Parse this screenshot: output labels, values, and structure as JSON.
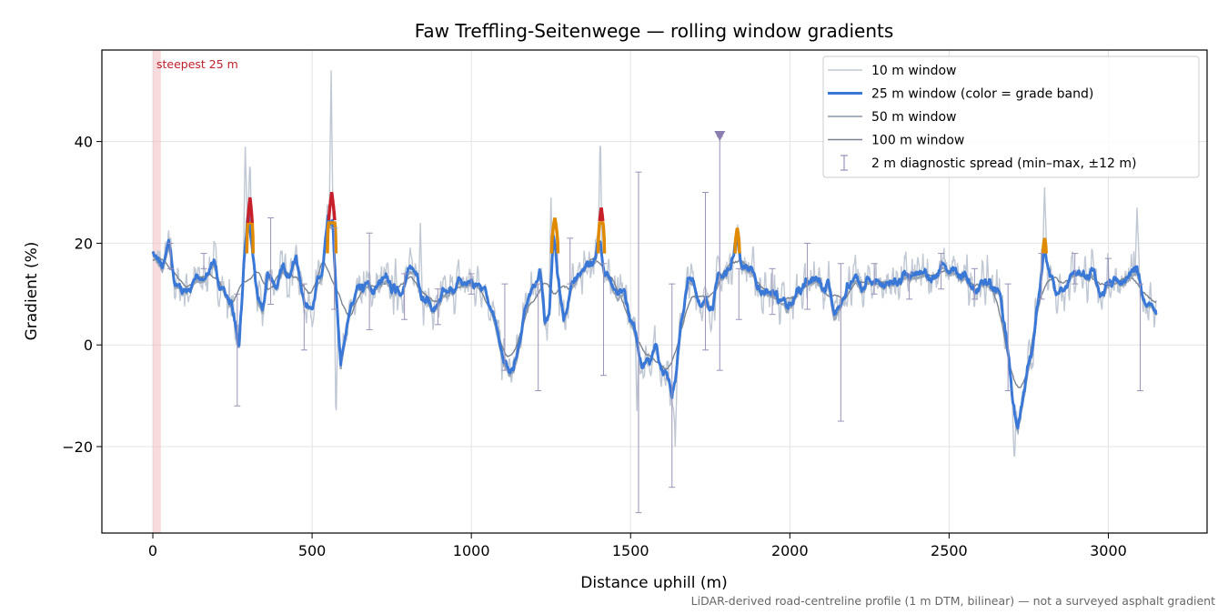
{
  "chart_data": {
    "type": "line",
    "title": "Faw Treffling-Seitenwege — rolling window gradients",
    "xlabel": "Distance uphill (m)",
    "ylabel": "Gradient (%)",
    "footnote": "LiDAR-derived road-centreline profile (1 m DTM, bilinear) — not a surveyed asphalt gradient",
    "xlim": [
      -160,
      3310
    ],
    "ylim": [
      -37,
      58
    ],
    "x_ticks": [
      0,
      500,
      1000,
      1500,
      2000,
      2500,
      3000
    ],
    "x_tick_labels": [
      "0",
      "500",
      "1000",
      "1500",
      "2000",
      "2500",
      "3000"
    ],
    "y_ticks": [
      -20,
      0,
      20,
      40
    ],
    "y_tick_labels": [
      "−20",
      "0",
      "20",
      "40"
    ],
    "grid": true,
    "legend_position": "top-right",
    "legend": [
      {
        "label": "10 m window",
        "style": "thin-light"
      },
      {
        "label": "25 m window (color = grade band)",
        "style": "thick-blue"
      },
      {
        "label": "50 m window",
        "style": "mid-grey"
      },
      {
        "label": "100 m window",
        "style": "dark-grey"
      },
      {
        "label": "2 m diagnostic spread (min–max, ±12 m)",
        "style": "errorbar"
      }
    ],
    "annotation": {
      "text": "steepest 25 m",
      "x_range": [
        0,
        25
      ]
    },
    "marker": {
      "x": 1780,
      "y": 41
    },
    "colors": {
      "w10": "#c0c8d3",
      "w25": "#3a78d8",
      "w50": "#9aa7b6",
      "w100": "#7a8490",
      "errorbar": "#9a92b8",
      "band_orange": "#e08a00",
      "band_red": "#c8202a",
      "highlight": "#f2b8bc",
      "marker": "#8a7fae"
    },
    "keypoints": [
      [
        0,
        19
      ],
      [
        15,
        16
      ],
      [
        30,
        15
      ],
      [
        50,
        19
      ],
      [
        70,
        12
      ],
      [
        100,
        11
      ],
      [
        130,
        12
      ],
      [
        160,
        13
      ],
      [
        180,
        16
      ],
      [
        200,
        14
      ],
      [
        230,
        10
      ],
      [
        255,
        6
      ],
      [
        270,
        0
      ],
      [
        285,
        14
      ],
      [
        300,
        25
      ],
      [
        315,
        17
      ],
      [
        330,
        8
      ],
      [
        345,
        6
      ],
      [
        360,
        14
      ],
      [
        390,
        12
      ],
      [
        420,
        15
      ],
      [
        450,
        17
      ],
      [
        470,
        10
      ],
      [
        490,
        8
      ],
      [
        510,
        10
      ],
      [
        530,
        13
      ],
      [
        550,
        23
      ],
      [
        565,
        23
      ],
      [
        575,
        10
      ],
      [
        590,
        -5
      ],
      [
        610,
        4
      ],
      [
        640,
        12
      ],
      [
        680,
        11
      ],
      [
        720,
        12
      ],
      [
        760,
        11
      ],
      [
        800,
        13
      ],
      [
        830,
        15
      ],
      [
        850,
        10
      ],
      [
        880,
        7
      ],
      [
        920,
        9
      ],
      [
        960,
        12
      ],
      [
        1000,
        12
      ],
      [
        1040,
        13
      ],
      [
        1060,
        8
      ],
      [
        1080,
        2
      ],
      [
        1100,
        -3
      ],
      [
        1120,
        -6
      ],
      [
        1140,
        -4
      ],
      [
        1160,
        3
      ],
      [
        1180,
        10
      ],
      [
        1200,
        13
      ],
      [
        1215,
        14
      ],
      [
        1230,
        4
      ],
      [
        1245,
        8
      ],
      [
        1258,
        22
      ],
      [
        1270,
        14
      ],
      [
        1290,
        5
      ],
      [
        1310,
        10
      ],
      [
        1330,
        13
      ],
      [
        1350,
        15
      ],
      [
        1370,
        17
      ],
      [
        1390,
        16
      ],
      [
        1405,
        22
      ],
      [
        1420,
        15
      ],
      [
        1440,
        12
      ],
      [
        1460,
        8
      ],
      [
        1480,
        10
      ],
      [
        1500,
        5
      ],
      [
        1520,
        0
      ],
      [
        1540,
        -3
      ],
      [
        1560,
        -2
      ],
      [
        1580,
        0
      ],
      [
        1600,
        -4
      ],
      [
        1615,
        -6
      ],
      [
        1630,
        -8
      ],
      [
        1645,
        -5
      ],
      [
        1660,
        5
      ],
      [
        1680,
        12
      ],
      [
        1700,
        12
      ],
      [
        1720,
        9
      ],
      [
        1740,
        7
      ],
      [
        1760,
        10
      ],
      [
        1780,
        13
      ],
      [
        1800,
        14
      ],
      [
        1820,
        18
      ],
      [
        1835,
        21
      ],
      [
        1850,
        16
      ],
      [
        1870,
        15
      ],
      [
        1900,
        12
      ],
      [
        1930,
        10
      ],
      [
        1960,
        10
      ],
      [
        1990,
        6
      ],
      [
        2020,
        10
      ],
      [
        2050,
        13
      ],
      [
        2080,
        13
      ],
      [
        2100,
        11
      ],
      [
        2120,
        12
      ],
      [
        2140,
        4
      ],
      [
        2160,
        8
      ],
      [
        2180,
        13
      ],
      [
        2200,
        12
      ],
      [
        2230,
        11
      ],
      [
        2260,
        13
      ],
      [
        2300,
        12
      ],
      [
        2350,
        13
      ],
      [
        2400,
        13
      ],
      [
        2450,
        14
      ],
      [
        2480,
        15
      ],
      [
        2510,
        14
      ],
      [
        2540,
        13
      ],
      [
        2570,
        12
      ],
      [
        2600,
        12
      ],
      [
        2630,
        12
      ],
      [
        2660,
        10
      ],
      [
        2680,
        2
      ],
      [
        2700,
        -10
      ],
      [
        2715,
        -17
      ],
      [
        2730,
        -12
      ],
      [
        2750,
        -5
      ],
      [
        2770,
        3
      ],
      [
        2785,
        10
      ],
      [
        2800,
        19
      ],
      [
        2815,
        15
      ],
      [
        2840,
        11
      ],
      [
        2870,
        13
      ],
      [
        2900,
        15
      ],
      [
        2930,
        14
      ],
      [
        2960,
        12
      ],
      [
        2990,
        11
      ],
      [
        3020,
        14
      ],
      [
        3050,
        12
      ],
      [
        3070,
        13
      ],
      [
        3090,
        14
      ],
      [
        3110,
        10
      ],
      [
        3130,
        8
      ],
      [
        3150,
        7
      ]
    ],
    "steep_segments": [
      {
        "range": [
          295,
          315
        ],
        "band": "red",
        "peak": 29
      },
      {
        "range": [
          548,
          575
        ],
        "band": "red",
        "peak": 30
      },
      {
        "range": [
          1252,
          1272
        ],
        "band": "orange",
        "peak": 25
      },
      {
        "range": [
          1398,
          1418
        ],
        "band": "red",
        "peak": 27
      },
      {
        "range": [
          1828,
          1842
        ],
        "band": "orange",
        "peak": 23
      },
      {
        "range": [
          2795,
          2805
        ],
        "band": "orange",
        "peak": 21
      }
    ],
    "spikes_10m": [
      {
        "x": 290,
        "y": 39
      },
      {
        "x": 305,
        "y": 37
      },
      {
        "x": 560,
        "y": 54
      },
      {
        "x": 575,
        "y": -17
      },
      {
        "x": 1250,
        "y": 29
      },
      {
        "x": 1405,
        "y": 43
      },
      {
        "x": 1520,
        "y": -13
      },
      {
        "x": 1640,
        "y": -20
      },
      {
        "x": 2705,
        "y": -23
      },
      {
        "x": 2800,
        "y": 31
      },
      {
        "x": 3090,
        "y": 27
      },
      {
        "x": 840,
        "y": 24
      }
    ],
    "errorbars": [
      {
        "x": 55,
        "min": 15,
        "max": 20
      },
      {
        "x": 160,
        "min": 15,
        "max": 18
      },
      {
        "x": 265,
        "min": -12,
        "max": 10
      },
      {
        "x": 370,
        "min": 8,
        "max": 25
      },
      {
        "x": 475,
        "min": -1,
        "max": 12
      },
      {
        "x": 570,
        "min": 7,
        "max": 23
      },
      {
        "x": 680,
        "min": 3,
        "max": 22
      },
      {
        "x": 790,
        "min": 5,
        "max": 14
      },
      {
        "x": 895,
        "min": 4,
        "max": 11
      },
      {
        "x": 1000,
        "min": 10,
        "max": 14
      },
      {
        "x": 1105,
        "min": -5,
        "max": 12
      },
      {
        "x": 1210,
        "min": -9,
        "max": 12
      },
      {
        "x": 1310,
        "min": 12,
        "max": 21
      },
      {
        "x": 1415,
        "min": -6,
        "max": 16
      },
      {
        "x": 1525,
        "min": -33,
        "max": 34
      },
      {
        "x": 1630,
        "min": -28,
        "max": 12
      },
      {
        "x": 1735,
        "min": -1,
        "max": 30
      },
      {
        "x": 1780,
        "min": -5,
        "max": 41
      },
      {
        "x": 1840,
        "min": 5,
        "max": 15
      },
      {
        "x": 1945,
        "min": 6,
        "max": 15
      },
      {
        "x": 2055,
        "min": 7,
        "max": 20
      },
      {
        "x": 2160,
        "min": -15,
        "max": 16
      },
      {
        "x": 2265,
        "min": 10,
        "max": 16
      },
      {
        "x": 2375,
        "min": 9,
        "max": 14
      },
      {
        "x": 2475,
        "min": 11,
        "max": 18
      },
      {
        "x": 2580,
        "min": 9,
        "max": 15
      },
      {
        "x": 2685,
        "min": -9,
        "max": 12
      },
      {
        "x": 2790,
        "min": 9,
        "max": 18
      },
      {
        "x": 2895,
        "min": 12,
        "max": 18
      },
      {
        "x": 3000,
        "min": 12,
        "max": 17
      },
      {
        "x": 3100,
        "min": -9,
        "max": 12
      }
    ]
  }
}
